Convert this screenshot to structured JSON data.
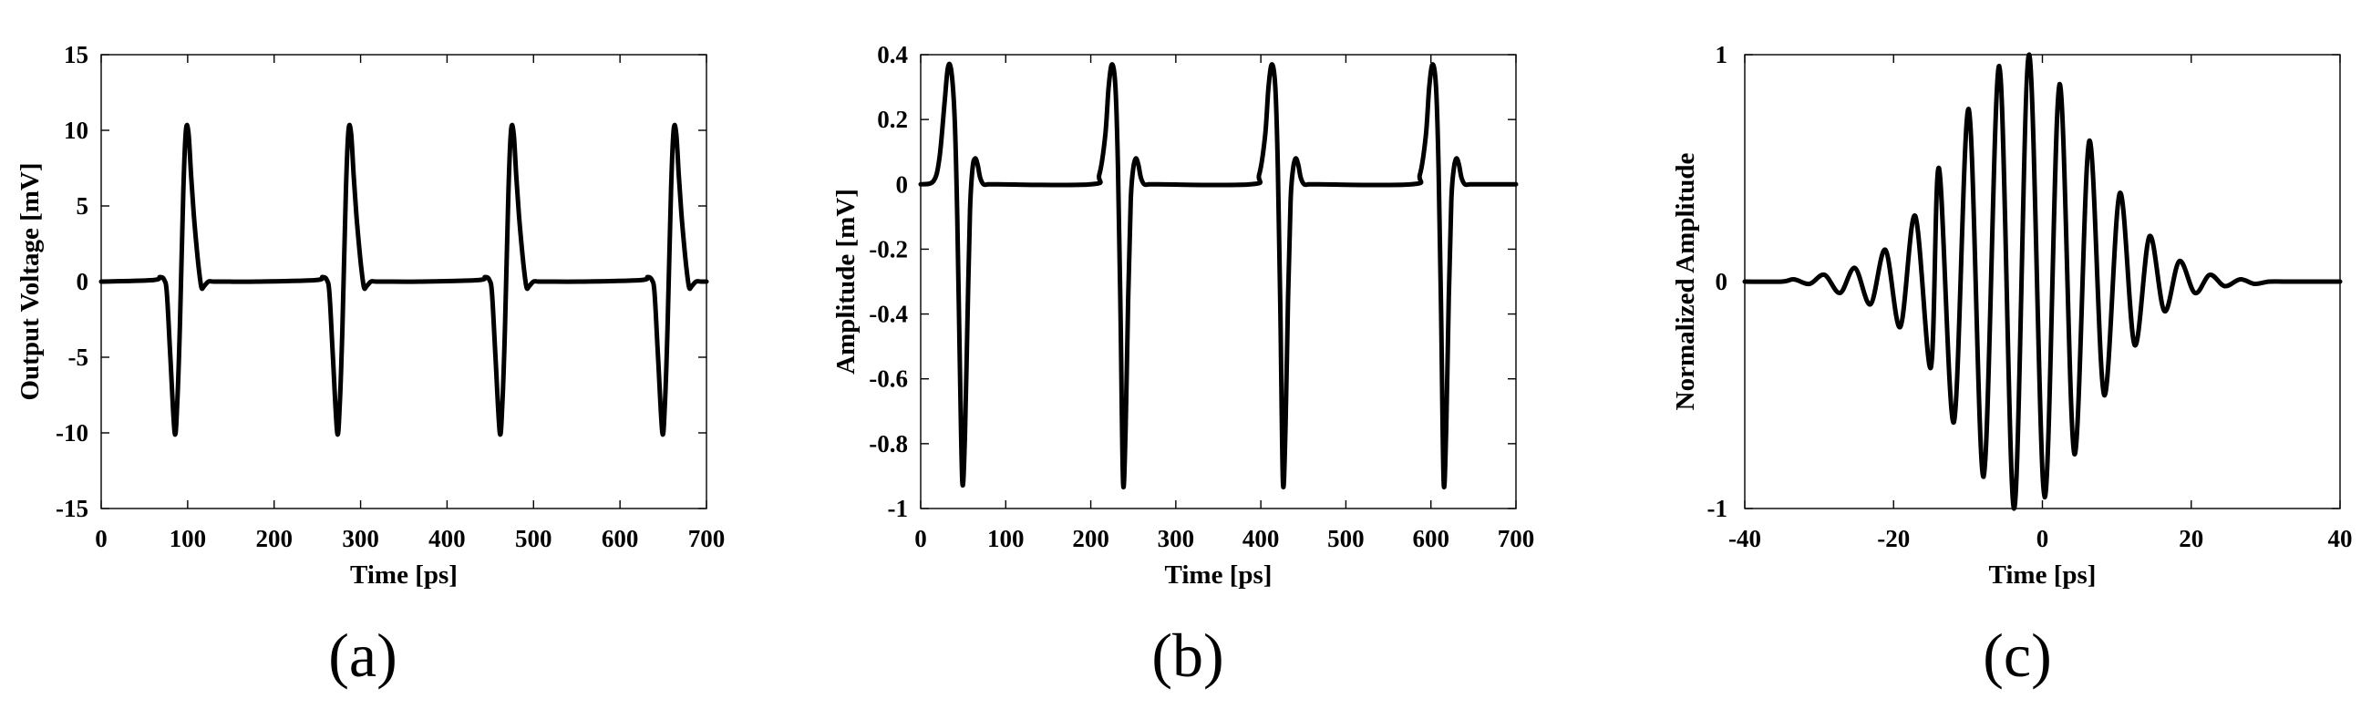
{
  "chart_data": [
    {
      "type": "line",
      "panel_label": "(a)",
      "xlabel": "Time [ps]",
      "ylabel": "Output Voltage [mV]",
      "xlim": [
        0,
        700
      ],
      "ylim": [
        -15,
        15
      ],
      "xticks": [
        0,
        100,
        200,
        300,
        400,
        500,
        600,
        700
      ],
      "yticks": [
        15,
        10,
        5,
        0,
        -5,
        -10,
        -15
      ],
      "ytick_labels": [
        "15",
        "10",
        "5",
        "0",
        "-5",
        "-10",
        "-15"
      ],
      "grid": false,
      "series": [
        {
          "color": "#000000",
          "x": [
            0,
            60,
            68,
            73,
            76,
            80,
            85,
            88,
            91,
            95,
            98,
            101,
            104,
            107,
            110,
            113,
            116,
            119,
            124,
            130,
            140,
            180,
            248,
            256,
            261,
            264,
            268,
            273,
            276,
            279,
            283,
            286,
            289,
            292,
            295,
            298,
            301,
            304,
            307,
            312,
            318,
            328,
            368,
            436,
            444,
            449,
            452,
            456,
            461,
            464,
            467,
            471,
            474,
            477,
            480,
            483,
            486,
            489,
            492,
            495,
            500,
            506,
            516,
            556,
            624,
            632,
            637,
            640,
            644,
            649,
            652,
            655,
            659,
            662,
            665,
            668,
            671,
            674,
            677,
            680,
            683,
            688,
            694,
            700
          ],
          "y": [
            0,
            0.1,
            0.3,
            0.1,
            -0.8,
            -5,
            -10,
            -8,
            -3,
            6,
            10,
            9.8,
            7,
            4.5,
            2.5,
            0.8,
            -0.4,
            -0.3,
            0,
            0,
            0,
            0,
            0.1,
            0.3,
            0.1,
            -0.8,
            -5,
            -10,
            -8,
            -3,
            6,
            10,
            9.8,
            7,
            4.5,
            2.5,
            0.8,
            -0.4,
            -0.3,
            0,
            0,
            0,
            0,
            0.1,
            0.3,
            0.1,
            -0.8,
            -5,
            -10,
            -8,
            -3,
            6,
            10,
            9.8,
            7,
            4.5,
            2.5,
            0.8,
            -0.4,
            -0.3,
            0,
            0,
            0,
            0,
            0.1,
            0.3,
            0.1,
            -0.8,
            -5,
            -10,
            -8,
            -3,
            6,
            10,
            9.8,
            7,
            4.5,
            2.5,
            0.8,
            -0.4,
            -0.3,
            0,
            0,
            0
          ]
        }
      ]
    },
    {
      "type": "line",
      "panel_label": "(b)",
      "xlabel": "Time [ps]",
      "ylabel": "Amplitude [mV]",
      "xlim": [
        0,
        700
      ],
      "ylim": [
        -1,
        0.4
      ],
      "xticks": [
        0,
        100,
        200,
        300,
        400,
        500,
        600,
        700
      ],
      "yticks": [
        0.4,
        0.2,
        0,
        -0.2,
        -0.4,
        -0.6,
        -0.8,
        -1
      ],
      "ytick_labels": [
        "0.4",
        "0.2",
        "0",
        "-0.2",
        "-0.4",
        "-0.6",
        "-0.8",
        "-1"
      ],
      "grid": false,
      "series": [
        {
          "color": "#000000",
          "x": [
            0,
            15,
            22,
            28,
            32,
            36,
            40,
            43,
            46,
            49,
            52,
            55,
            58,
            61,
            64,
            67,
            70,
            74,
            80,
            90,
            200,
            210,
            217,
            221,
            225,
            229,
            232,
            235,
            238,
            241,
            244,
            247,
            250,
            253,
            256,
            259,
            263,
            269,
            279,
            388,
            398,
            405,
            409,
            413,
            417,
            420,
            423,
            426,
            429,
            432,
            435,
            438,
            441,
            444,
            447,
            451,
            457,
            467,
            577,
            587,
            594,
            598,
            602,
            606,
            609,
            612,
            615,
            618,
            621,
            624,
            627,
            630,
            633,
            636,
            640,
            646,
            656,
            700
          ],
          "y": [
            0,
            0.01,
            0.08,
            0.25,
            0.36,
            0.35,
            0.2,
            -0.1,
            -0.55,
            -0.92,
            -0.78,
            -0.42,
            -0.08,
            0.05,
            0.08,
            0.06,
            0.02,
            0,
            0,
            0,
            0,
            0.03,
            0.15,
            0.3,
            0.37,
            0.3,
            0.05,
            -0.4,
            -0.92,
            -0.75,
            -0.35,
            -0.05,
            0.05,
            0.08,
            0.06,
            0.02,
            0,
            0,
            0,
            0,
            0.03,
            0.15,
            0.3,
            0.37,
            0.3,
            0.05,
            -0.4,
            -0.92,
            -0.75,
            -0.35,
            -0.05,
            0.05,
            0.08,
            0.06,
            0.02,
            0,
            0,
            0,
            0,
            0.03,
            0.15,
            0.3,
            0.37,
            0.3,
            0.05,
            -0.4,
            -0.92,
            -0.75,
            -0.35,
            -0.05,
            0.05,
            0.08,
            0.06,
            0.02,
            0,
            0,
            0,
            0
          ]
        }
      ]
    },
    {
      "type": "line",
      "panel_label": "(c)",
      "xlabel": "Time [ps]",
      "ylabel": "Normalized Amplitude",
      "xlim": [
        -40,
        40
      ],
      "ylim": [
        -1,
        1
      ],
      "xticks": [
        -40,
        -20,
        0,
        20,
        40
      ],
      "yticks": [
        1,
        0,
        -1
      ],
      "ytick_labels": [
        "1",
        "0",
        "-1"
      ],
      "grid": false,
      "series": [
        {
          "color": "#000000",
          "x": [
            -40,
            -35,
            -33.4,
            -31.3,
            -29.3,
            -27.2,
            -25.2,
            -23.1,
            -21.1,
            -19.1,
            -17.1,
            -15.0,
            -13.9,
            -11.9,
            -9.9,
            -7.9,
            -5.8,
            -3.8,
            -1.8,
            0.3,
            2.3,
            4.3,
            6.3,
            8.3,
            10.4,
            12.4,
            14.4,
            16.4,
            18.4,
            20.5,
            22.5,
            24.5,
            26.6,
            28.5,
            30.5,
            33,
            40
          ],
          "y": [
            0,
            0,
            0.01,
            -0.01,
            0.03,
            -0.05,
            0.06,
            -0.1,
            0.14,
            -0.2,
            0.29,
            -0.38,
            0.5,
            -0.62,
            0.76,
            -0.86,
            0.95,
            -1.0,
            1.0,
            -0.95,
            0.87,
            -0.76,
            0.62,
            -0.5,
            0.39,
            -0.28,
            0.2,
            -0.13,
            0.09,
            -0.05,
            0.03,
            -0.02,
            0.01,
            -0.01,
            0,
            0,
            0
          ]
        }
      ]
    }
  ]
}
